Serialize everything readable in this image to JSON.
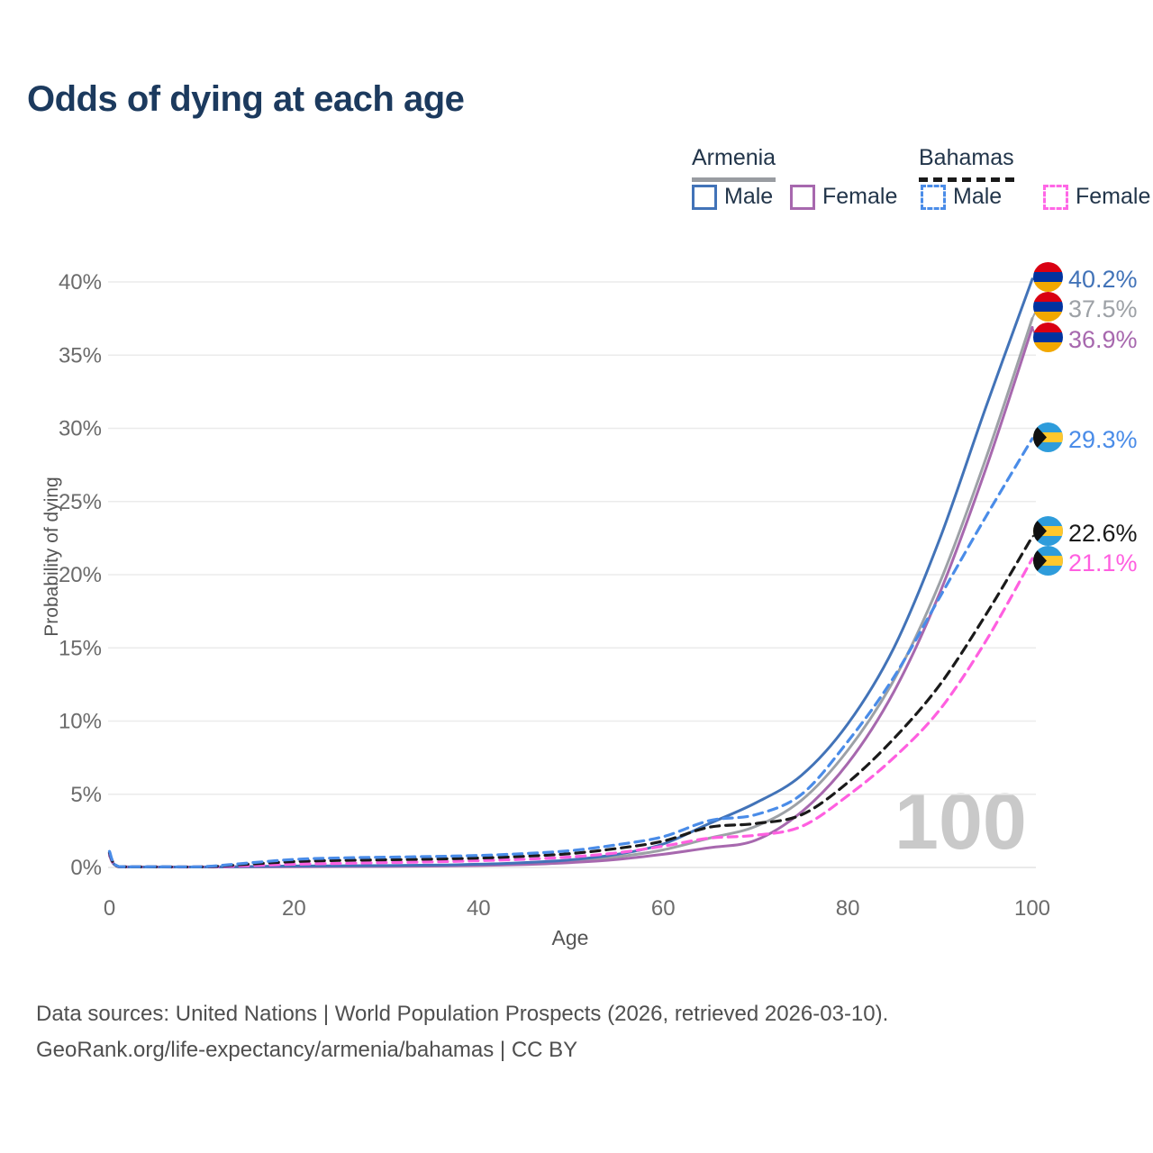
{
  "title": "Odds of dying at each age",
  "legend": {
    "groups": [
      {
        "label": "Armenia",
        "underline_color": "#999CA1",
        "underline_style": "solid",
        "items": [
          {
            "label": "Male",
            "color": "#4273B8",
            "style": "solid"
          },
          {
            "label": "Female",
            "color": "#A768AE",
            "style": "solid"
          }
        ]
      },
      {
        "label": "Bahamas",
        "underline_color": "#1A1A1A",
        "underline_style": "dashed",
        "items": [
          {
            "label": "Male",
            "color": "#4A8CE8",
            "style": "dashed"
          },
          {
            "label": "Female",
            "color": "#FF66E6",
            "style": "dashed"
          }
        ]
      }
    ]
  },
  "chart_data": {
    "type": "line",
    "title": "Odds of dying at each age",
    "xlabel": "Age",
    "ylabel": "Probability of dying",
    "xlim": [
      0,
      100
    ],
    "ylim": [
      0,
      40
    ],
    "grid": true,
    "legend_position": "top-right",
    "watermark": "100",
    "x_ticks": [
      0,
      20,
      40,
      60,
      80,
      100
    ],
    "y_ticks": [
      "0%",
      "5%",
      "10%",
      "15%",
      "20%",
      "25%",
      "30%",
      "35%",
      "40%"
    ],
    "x": [
      0,
      1,
      5,
      10,
      15,
      20,
      25,
      30,
      35,
      40,
      45,
      50,
      55,
      60,
      65,
      70,
      75,
      80,
      85,
      90,
      95,
      100
    ],
    "series": [
      {
        "name": "Armenia Male",
        "flag": "armenia",
        "color": "#4273B8",
        "dashed": false,
        "end_label": "40.2%",
        "end_value": 40.2,
        "values": [
          0.9,
          0.05,
          0.03,
          0.03,
          0.06,
          0.1,
          0.11,
          0.13,
          0.16,
          0.22,
          0.33,
          0.52,
          0.9,
          1.6,
          3.0,
          4.4,
          6.3,
          9.8,
          15.0,
          22.5,
          31.5,
          40.2
        ]
      },
      {
        "name": "Armenia Both sexes",
        "flag": "armenia",
        "color": "#9DA1A6",
        "dashed": false,
        "end_label": "37.5%",
        "end_value": 37.5,
        "values": [
          0.85,
          0.045,
          0.025,
          0.025,
          0.05,
          0.08,
          0.09,
          0.1,
          0.12,
          0.17,
          0.26,
          0.42,
          0.72,
          1.2,
          2.0,
          2.8,
          4.6,
          8.0,
          12.8,
          19.5,
          28.0,
          37.5
        ]
      },
      {
        "name": "Armenia Female",
        "flag": "armenia",
        "color": "#A768AE",
        "dashed": false,
        "end_label": "36.9%",
        "end_value": 36.9,
        "values": [
          0.8,
          0.04,
          0.02,
          0.02,
          0.04,
          0.05,
          0.06,
          0.07,
          0.09,
          0.13,
          0.2,
          0.33,
          0.55,
          0.9,
          1.35,
          1.85,
          3.8,
          7.1,
          12.0,
          18.8,
          27.3,
          36.9
        ]
      },
      {
        "name": "Bahamas Male",
        "flag": "bahamas",
        "color": "#4A8CE8",
        "dashed": true,
        "end_label": "29.3%",
        "end_value": 29.3,
        "values": [
          1.1,
          0.06,
          0.05,
          0.05,
          0.3,
          0.55,
          0.65,
          0.7,
          0.75,
          0.82,
          0.95,
          1.15,
          1.55,
          2.1,
          3.2,
          3.6,
          5.0,
          8.6,
          13.0,
          18.5,
          24.0,
          29.3
        ]
      },
      {
        "name": "Bahamas Both sexes",
        "flag": "bahamas",
        "color": "#1A1A1A",
        "dashed": true,
        "end_label": "22.6%",
        "end_value": 22.6,
        "values": [
          1.0,
          0.055,
          0.04,
          0.04,
          0.22,
          0.4,
          0.48,
          0.52,
          0.57,
          0.64,
          0.76,
          0.95,
          1.3,
          1.8,
          2.75,
          3.0,
          3.6,
          5.8,
          8.8,
          12.5,
          17.3,
          22.6
        ]
      },
      {
        "name": "Bahamas Female",
        "flag": "bahamas",
        "color": "#FF5FE0",
        "dashed": true,
        "end_label": "21.1%",
        "end_value": 21.1,
        "values": [
          0.95,
          0.05,
          0.035,
          0.035,
          0.12,
          0.22,
          0.28,
          0.33,
          0.38,
          0.46,
          0.56,
          0.72,
          1.0,
          1.45,
          2.0,
          2.2,
          2.8,
          4.9,
          7.5,
          10.8,
          15.5,
          21.1
        ]
      }
    ]
  },
  "flags": {
    "armenia": {
      "red": "#D90012",
      "blue": "#0033A0",
      "orange": "#F2A800"
    },
    "bahamas": {
      "aqua": "#2E9CDB",
      "gold": "#FFC72C",
      "black": "#111111"
    }
  },
  "footer": {
    "line1": "Data sources: United Nations | World Population Prospects (2026, retrieved 2026-03-10).",
    "line2": "GeoRank.org/life-expectancy/armenia/bahamas | CC BY"
  }
}
